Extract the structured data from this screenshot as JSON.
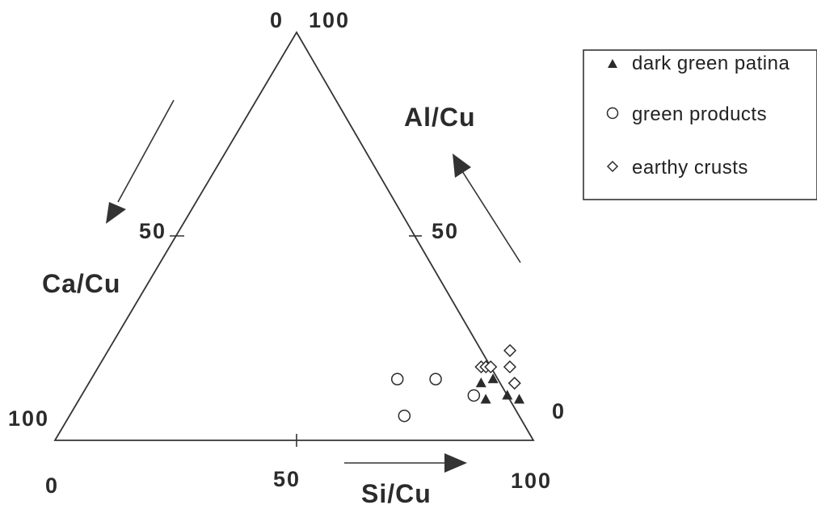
{
  "chart_data": {
    "type": "ternary-scatter",
    "axes": {
      "si": {
        "label": "Si/Cu",
        "ticks": [
          "0",
          "50",
          "100"
        ],
        "range": [
          0,
          100
        ]
      },
      "al": {
        "label": "Al/Cu",
        "ticks": [
          "0",
          "50",
          "100"
        ],
        "range": [
          0,
          100
        ]
      },
      "ca": {
        "label": "Ca/Cu",
        "ticks": [
          "0",
          "50",
          "100"
        ],
        "range": [
          0,
          100
        ]
      }
    },
    "legend_position": "top-right",
    "series": [
      {
        "name": "dark green patina",
        "marker": "filled-triangle",
        "points": [
          {
            "si": 82,
            "al": 14,
            "ca": 4
          },
          {
            "si": 84,
            "al": 15,
            "ca": 1
          },
          {
            "si": 85,
            "al": 10,
            "ca": 5
          },
          {
            "si": 89,
            "al": 11,
            "ca": 0
          },
          {
            "si": 92,
            "al": 10,
            "ca": -2
          }
        ]
      },
      {
        "name": "green products",
        "marker": "open-circle",
        "points": [
          {
            "si": 64,
            "al": 15,
            "ca": 21
          },
          {
            "si": 72,
            "al": 15,
            "ca": 13
          },
          {
            "si": 70,
            "al": 6,
            "ca": 24
          },
          {
            "si": 82,
            "al": 11,
            "ca": 7
          }
        ]
      },
      {
        "name": "earthy crusts",
        "marker": "open-diamond",
        "points": [
          {
            "si": 80,
            "al": 18,
            "ca": 2
          },
          {
            "si": 81,
            "al": 18,
            "ca": 1
          },
          {
            "si": 82,
            "al": 18,
            "ca": 0
          },
          {
            "si": 84,
            "al": 22,
            "ca": -6
          },
          {
            "si": 86,
            "al": 18,
            "ca": -4
          },
          {
            "si": 89,
            "al": 14,
            "ca": -3
          }
        ]
      }
    ]
  }
}
